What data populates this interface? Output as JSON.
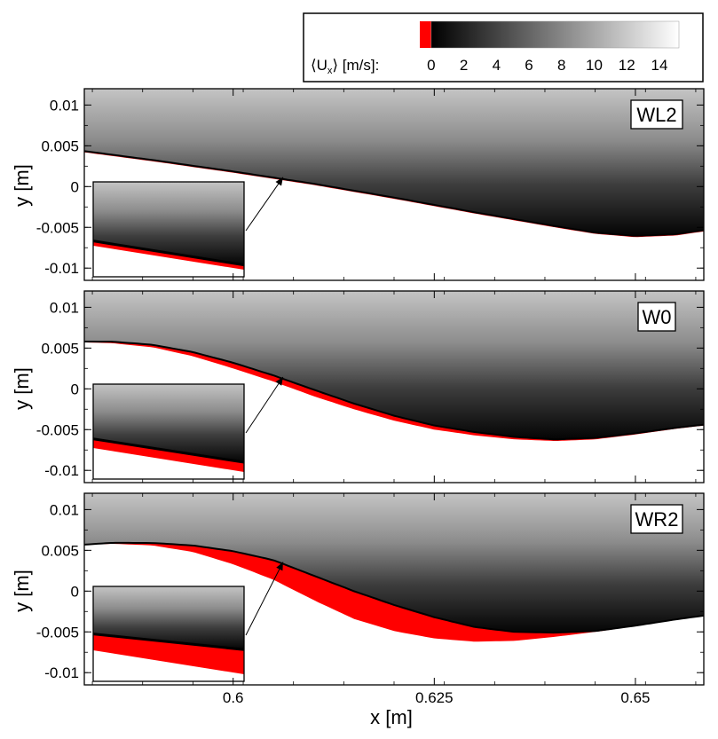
{
  "colorbar": {
    "label_prefix": "⟨U",
    "label_sub": "x",
    "label_suffix": "⟩ [m/s]:",
    "ticks": [
      0,
      2,
      4,
      6,
      8,
      10,
      12,
      14
    ],
    "range": [
      -0.7,
      15.2
    ],
    "negative_color": "#ff0000",
    "low_color": "#000000",
    "high_color": "#ffffff"
  },
  "axes": {
    "xlabel": "x [m]",
    "ylabel": "y [m]",
    "x_ticks": [
      0.6,
      0.625,
      0.65
    ],
    "x_tick_labels": [
      "0.6",
      "0.625",
      "0.65"
    ],
    "y_ticks": [
      0.01,
      0.005,
      0,
      -0.005,
      -0.01
    ],
    "y_tick_labels": [
      "0.01",
      "0.005",
      "0",
      "-0.005",
      "-0.01"
    ],
    "xlim": [
      0.5815,
      0.6585
    ],
    "ylim": [
      -0.0115,
      0.012
    ]
  },
  "chart_data": [
    {
      "type": "heatmap",
      "panel": "WL2",
      "field": "mean streamwise velocity",
      "wall": [
        [
          0.5815,
          0.0042
        ],
        [
          0.59,
          0.0031
        ],
        [
          0.6,
          0.0017
        ],
        [
          0.61,
          0.0002
        ],
        [
          0.62,
          -0.0015
        ],
        [
          0.63,
          -0.0033
        ],
        [
          0.64,
          -0.005
        ],
        [
          0.645,
          -0.0058
        ],
        [
          0.65,
          -0.0062
        ],
        [
          0.655,
          -0.006
        ],
        [
          0.6585,
          -0.0055
        ]
      ],
      "reverse_flow_thickness": [
        [
          0.5815,
          0.00015
        ],
        [
          0.6585,
          0.00015
        ]
      ],
      "wall_velocity": 0.3,
      "freestream_velocity": 10.5
    },
    {
      "type": "heatmap",
      "panel": "W0",
      "field": "mean streamwise velocity",
      "wall": [
        [
          0.5815,
          0.0057
        ],
        [
          0.585,
          0.0056
        ],
        [
          0.59,
          0.0051
        ],
        [
          0.595,
          0.004
        ],
        [
          0.6,
          0.0025
        ],
        [
          0.605,
          0.0009
        ],
        [
          0.61,
          -0.0009
        ],
        [
          0.615,
          -0.0025
        ],
        [
          0.62,
          -0.0039
        ],
        [
          0.625,
          -0.005
        ],
        [
          0.63,
          -0.0057
        ],
        [
          0.635,
          -0.0062
        ],
        [
          0.64,
          -0.0064
        ],
        [
          0.645,
          -0.0062
        ],
        [
          0.65,
          -0.0056
        ],
        [
          0.655,
          -0.0049
        ],
        [
          0.6585,
          -0.0045
        ]
      ],
      "reverse_flow_thickness": [
        [
          0.5815,
          0.0001
        ],
        [
          0.59,
          0.0003
        ],
        [
          0.6,
          0.0007
        ],
        [
          0.61,
          0.0008
        ],
        [
          0.62,
          0.0006
        ],
        [
          0.63,
          0.0004
        ],
        [
          0.64,
          0.0002
        ],
        [
          0.6585,
          0.0001
        ]
      ],
      "wall_velocity": 0.1,
      "freestream_velocity": 10.5
    },
    {
      "type": "heatmap",
      "panel": "WR2",
      "field": "mean streamwise velocity",
      "wall": [
        [
          0.5815,
          0.0057
        ],
        [
          0.585,
          0.0058
        ],
        [
          0.59,
          0.0056
        ],
        [
          0.595,
          0.0048
        ],
        [
          0.6,
          0.0033
        ],
        [
          0.605,
          0.0014
        ],
        [
          0.61,
          -0.0011
        ],
        [
          0.615,
          -0.0034
        ],
        [
          0.62,
          -0.0049
        ],
        [
          0.625,
          -0.0058
        ],
        [
          0.63,
          -0.0062
        ],
        [
          0.635,
          -0.0061
        ],
        [
          0.64,
          -0.0056
        ],
        [
          0.645,
          -0.005
        ],
        [
          0.65,
          -0.0043
        ],
        [
          0.655,
          -0.0035
        ],
        [
          0.6585,
          -0.003
        ]
      ],
      "reverse_flow_thickness": [
        [
          0.5815,
          0.0
        ],
        [
          0.59,
          0.0003
        ],
        [
          0.595,
          0.0008
        ],
        [
          0.6,
          0.0016
        ],
        [
          0.605,
          0.0024
        ],
        [
          0.61,
          0.003
        ],
        [
          0.615,
          0.0034
        ],
        [
          0.62,
          0.0032
        ],
        [
          0.625,
          0.0026
        ],
        [
          0.63,
          0.0018
        ],
        [
          0.635,
          0.0011
        ],
        [
          0.64,
          0.0005
        ],
        [
          0.645,
          0.0001
        ],
        [
          0.6585,
          0.0
        ]
      ],
      "wall_velocity": 0.1,
      "freestream_velocity": 10.5
    }
  ]
}
